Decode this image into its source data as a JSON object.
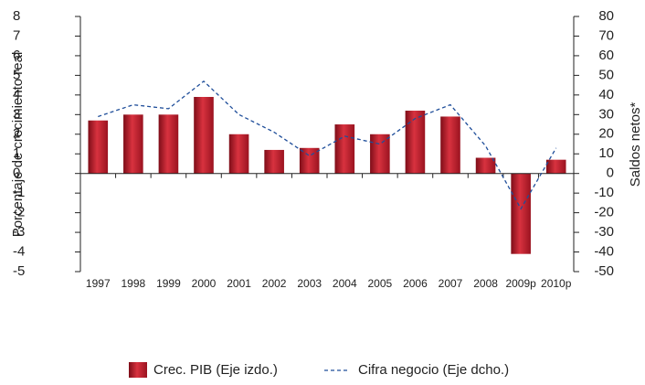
{
  "chart_data": {
    "type": "bar-line",
    "y_label": "Porcentaje de crecimiento real",
    "y2_label": "Saldos netos*",
    "categories": [
      "1997",
      "1998",
      "1999",
      "2000",
      "2001",
      "2002",
      "2003",
      "2004",
      "2005",
      "2006",
      "2007",
      "2008",
      "2009p",
      "2010p"
    ],
    "series": [
      {
        "name": "Crec. PIB (Eje izdo.)",
        "type": "bar",
        "color": "#c01f2f",
        "values": [
          2.7,
          3.0,
          3.0,
          3.9,
          2.0,
          1.2,
          1.3,
          2.5,
          2.0,
          3.2,
          2.9,
          0.8,
          -4.1,
          0.7
        ]
      },
      {
        "name": "Cifra negocio (Eje dcho.)",
        "type": "line",
        "axis": "y2",
        "color": "#1f4e9a",
        "values": [
          29,
          35,
          33,
          47,
          30,
          21,
          9,
          19,
          15,
          28,
          35,
          14,
          -18,
          13
        ]
      }
    ],
    "ylim": [
      -5,
      8
    ],
    "yticks": [
      -5,
      -4,
      -3,
      -2,
      -1,
      0,
      1,
      2,
      3,
      4,
      5,
      6,
      7,
      8
    ],
    "y2lim": [
      -50,
      80
    ],
    "y2ticks": [
      -50,
      -40,
      -30,
      -20,
      -10,
      0,
      10,
      20,
      30,
      40,
      50,
      60,
      70,
      80
    ]
  }
}
